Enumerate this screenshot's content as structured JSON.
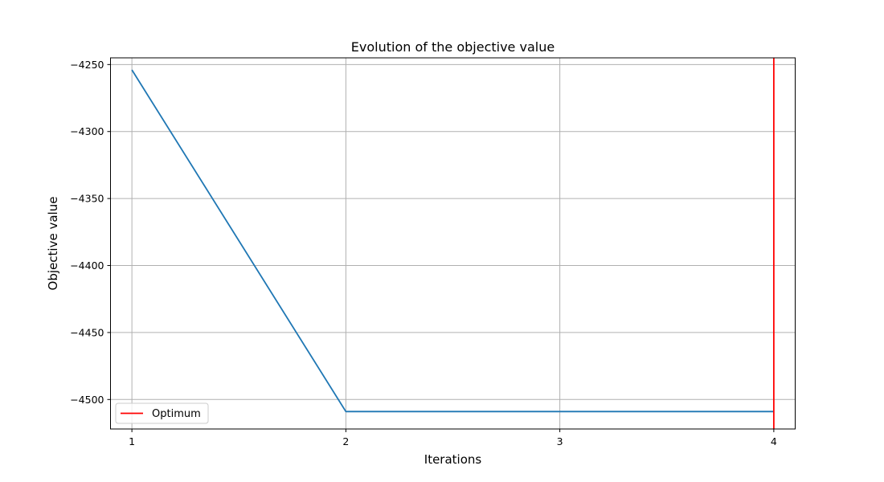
{
  "chart_data": {
    "type": "line",
    "title": "Evolution of the objective value",
    "xlabel": "Iterations",
    "ylabel": "Objective value",
    "x": [
      1,
      2,
      3,
      4
    ],
    "series": [
      {
        "values": [
          -4254,
          -4509,
          -4509,
          -4509
        ],
        "color": "#1f77b4"
      }
    ],
    "vline": {
      "x": 4,
      "label": "Optimum",
      "color": "#ff0000"
    },
    "xlim": [
      0.9,
      4.1
    ],
    "ylim": [
      -4522,
      -4245
    ],
    "xticks": [
      1,
      2,
      3,
      4
    ],
    "xtick_labels": [
      "1",
      "2",
      "3",
      "4"
    ],
    "yticks": [
      -4500,
      -4450,
      -4400,
      -4350,
      -4300,
      -4250
    ],
    "ytick_labels": [
      "−4500",
      "−4450",
      "−4400",
      "−4350",
      "−4300",
      "−4250"
    ],
    "grid": true,
    "legend_position": "lower-left",
    "grid_color": "#b0b0b0"
  }
}
